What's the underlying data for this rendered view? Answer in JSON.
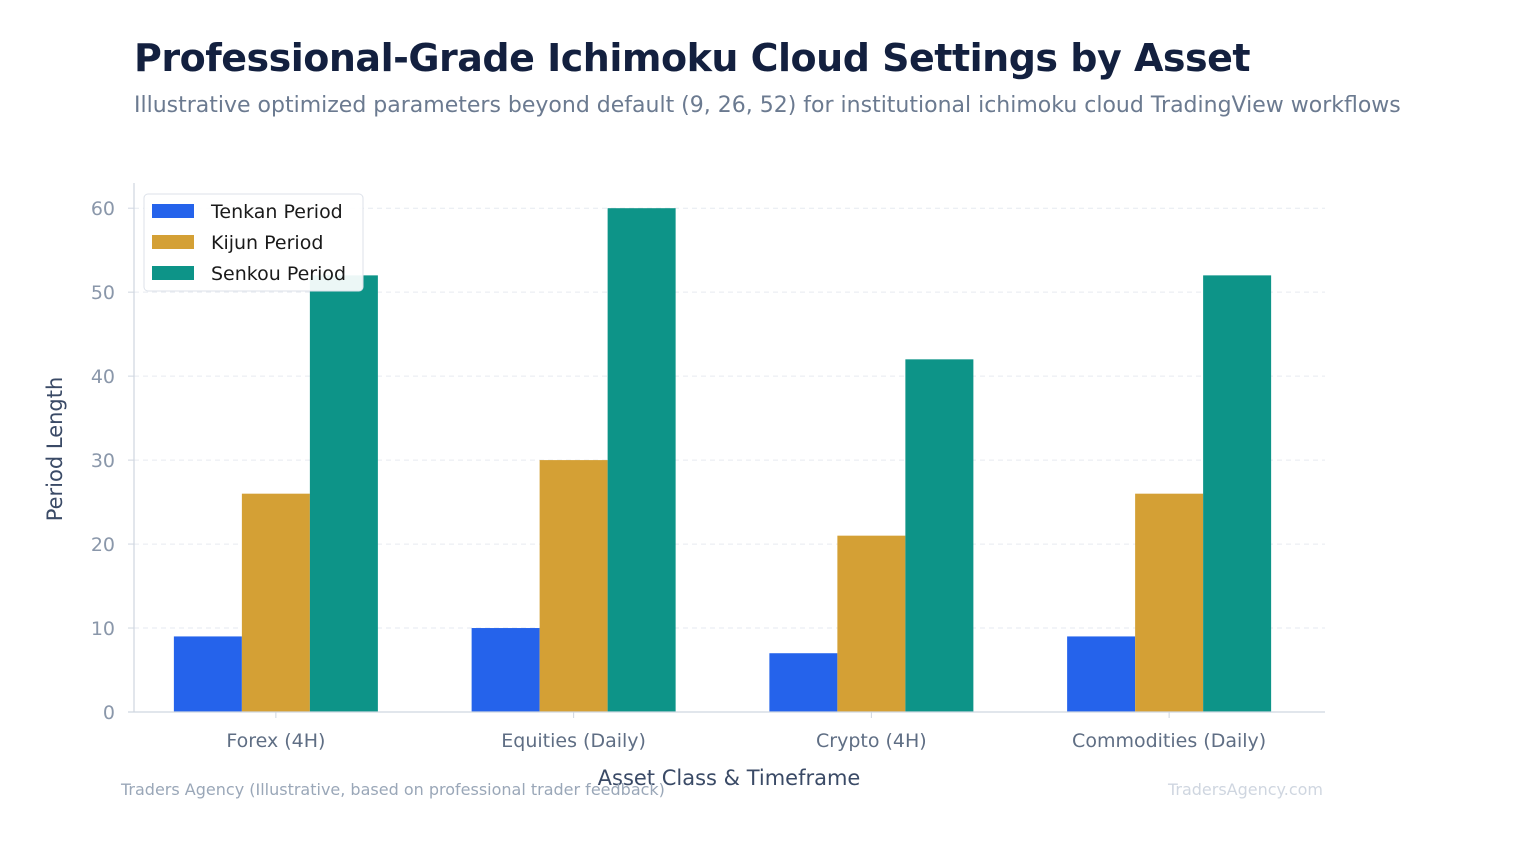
{
  "header": {
    "title": "Professional-Grade Ichimoku Cloud Settings by Asset",
    "subtitle": "Illustrative optimized parameters beyond default (9, 26, 52) for institutional ichimoku cloud TradingView workflows"
  },
  "footer": {
    "source": "Traders Agency (Illustrative, based on professional trader feedback)",
    "brand": "TradersAgency.com"
  },
  "chart_data": {
    "type": "bar",
    "title": "Professional-Grade Ichimoku Cloud Settings by Asset",
    "subtitle": "Illustrative optimized parameters beyond default (9, 26, 52) for institutional ichimoku cloud TradingView workflows",
    "xlabel": "Asset Class & Timeframe",
    "ylabel": "Period Length",
    "categories": [
      "Forex (4H)",
      "Equities (Daily)",
      "Crypto (4H)",
      "Commodities (Daily)"
    ],
    "series": [
      {
        "name": "Tenkan Period",
        "color": "#2563eb",
        "values": [
          9,
          10,
          7,
          9
        ]
      },
      {
        "name": "Kijun Period",
        "color": "#d4a035",
        "values": [
          26,
          30,
          21,
          26
        ]
      },
      {
        "name": "Senkou Period",
        "color": "#0d9488",
        "values": [
          52,
          60,
          42,
          52
        ]
      }
    ],
    "ylim": [
      0,
      63
    ],
    "yticks": [
      "0",
      "10",
      "20",
      "30",
      "40",
      "50",
      "60"
    ],
    "grid": "horizontal-dashed",
    "legend_position": "top-left"
  }
}
